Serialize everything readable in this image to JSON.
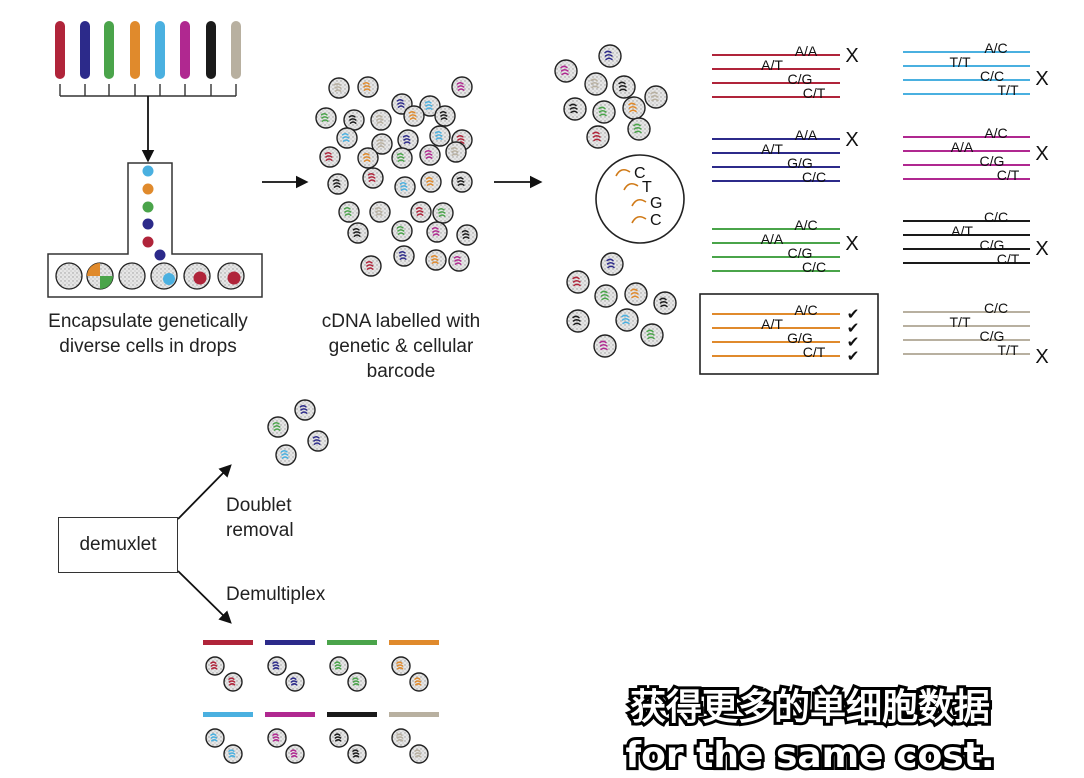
{
  "tube_colors": [
    "#b0243a",
    "#2c2a8a",
    "#4aa44a",
    "#e08a2c",
    "#4ab0e0",
    "#b02890",
    "#1a1a1a",
    "#b8b0a0"
  ],
  "labels": {
    "encapsulate": [
      "Encapsulate genetically",
      "diverse cells in drops"
    ],
    "cdna": [
      "cDNA labelled with",
      "genetic & cellular",
      "barcode"
    ],
    "demuxlet": "demuxlet",
    "doublet": [
      "Doublet",
      "removal"
    ],
    "demultiplex": "Demultiplex"
  },
  "zoom_letters": [
    "C",
    "T",
    "G",
    "C"
  ],
  "genotype_groups": [
    {
      "color": "#b0243a",
      "lines": [
        "A/A",
        "A/T",
        "C/G",
        "C/T"
      ],
      "mark": "X"
    },
    {
      "color": "#4ab0e0",
      "lines": [
        "A/C",
        "T/T",
        "C/C",
        "T/T"
      ],
      "mark": "X"
    },
    {
      "color": "#2c2a8a",
      "lines": [
        "A/A",
        "A/T",
        "G/G",
        "C/C"
      ],
      "mark": "X"
    },
    {
      "color": "#b02890",
      "lines": [
        "A/C",
        "A/A",
        "C/G",
        "C/T"
      ],
      "mark": "X"
    },
    {
      "color": "#4aa44a",
      "lines": [
        "A/C",
        "A/A",
        "C/G",
        "C/C"
      ],
      "mark": "X"
    },
    {
      "color": "#1a1a1a",
      "lines": [
        "C/C",
        "A/T",
        "C/G",
        "C/T"
      ],
      "mark": "X"
    },
    {
      "color": "#e08a2c",
      "lines": [
        "A/C",
        "A/T",
        "G/G",
        "C/T"
      ],
      "mark": "check"
    },
    {
      "color": "#b8b0a0",
      "lines": [
        "C/C",
        "T/T",
        "C/G",
        "T/T"
      ],
      "mark": "X"
    }
  ],
  "check_glyph": "✔",
  "x_glyph": "X",
  "subtitle": {
    "line1": "获得更多的单细胞数据",
    "line2": "for the same cost."
  }
}
